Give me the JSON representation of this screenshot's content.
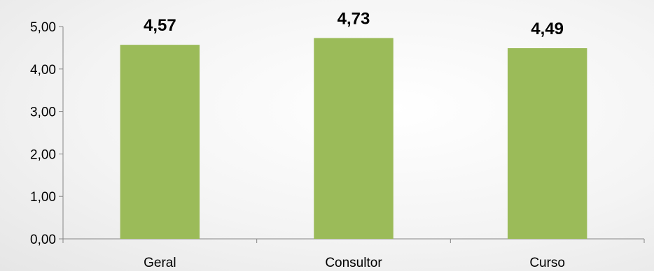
{
  "chart_data": {
    "type": "bar",
    "title": "",
    "xlabel": "",
    "ylabel": "",
    "categories": [
      "Geral",
      "Consultor",
      "Curso"
    ],
    "values": [
      4.57,
      4.73,
      4.49
    ],
    "data_labels": [
      "4,57",
      "4,73",
      "4,49"
    ],
    "ylim": [
      0,
      5
    ],
    "y_ticks": [
      0,
      1,
      2,
      3,
      4,
      5
    ],
    "y_tick_labels": [
      "0,00",
      "1,00",
      "2,00",
      "3,00",
      "4,00",
      "5,00"
    ],
    "grid": false,
    "legend": "none",
    "bar_color": "#9bbb59",
    "axis_color": "#868686"
  }
}
